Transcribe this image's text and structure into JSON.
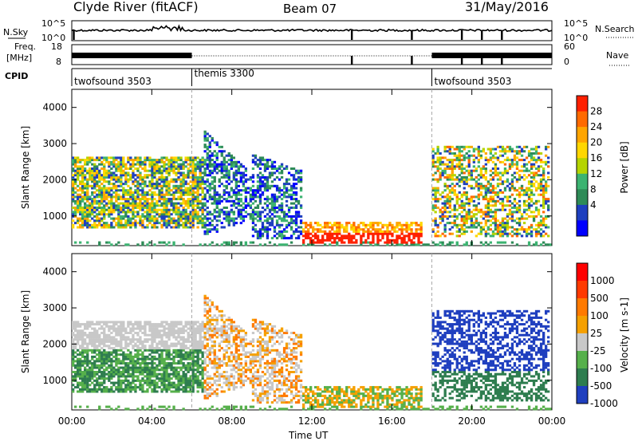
{
  "header": {
    "station": "Clyde River (fitACF)",
    "beam": "Beam 07",
    "date": "31/May/2016"
  },
  "nsky_panel": {
    "left_label": "N.Sky",
    "left_tick_top": "10^5",
    "left_tick_bottom": "10^0",
    "right_label": "N.Search",
    "right_tick_top": "10^5",
    "right_tick_bottom": "10^0"
  },
  "freq_panel": {
    "left_label_top": "Freq.",
    "left_label_bottom": "[MHz]",
    "left_tick_top": "18",
    "left_tick_bottom": "8",
    "right_label": "Nave",
    "right_tick_top": "60",
    "right_tick_bottom": "0"
  },
  "cpid": {
    "label": "CPID",
    "segments": [
      {
        "name": "twofsound 3503",
        "start": 0,
        "end": 6
      },
      {
        "name": "themis 3300",
        "start": 6,
        "end": 18
      },
      {
        "name": "twofsound 3503",
        "start": 18,
        "end": 24
      }
    ]
  },
  "chart_data": [
    {
      "type": "heatmap",
      "title": "",
      "xlabel": "",
      "ylabel": "Slant Range [km]",
      "xlim": [
        0,
        24
      ],
      "ylim": [
        180,
        4500
      ],
      "yticks": [
        "1000",
        "2000",
        "3000",
        "4000"
      ],
      "colorbar_label": "Power [dB]",
      "colorbar_ticks": [
        "4",
        "8",
        "12",
        "16",
        "20",
        "24",
        "28"
      ],
      "colors": [
        "#0000ff",
        "#1e3fbf",
        "#2e8b57",
        "#3cb371",
        "#b5d400",
        "#ffd700",
        "#ffa500",
        "#ff6a00",
        "#ff2000"
      ]
    },
    {
      "type": "heatmap",
      "title": "",
      "xlabel": "Time UT",
      "ylabel": "Slant Range [km]",
      "xlim": [
        0,
        24
      ],
      "ylim": [
        180,
        4500
      ],
      "xticks": [
        "00:00",
        "04:00",
        "08:00",
        "12:00",
        "16:00",
        "20:00",
        "00:00"
      ],
      "yticks": [
        "1000",
        "2000",
        "3000",
        "4000"
      ],
      "colorbar_label": "Velocity  [m s-1]",
      "colorbar_ticks": [
        "1000",
        "500",
        "100",
        "25",
        "-25",
        "-100",
        "-500",
        "-1000"
      ],
      "colors": [
        "#1f3fbf",
        "#2e7d4f",
        "#56b04b",
        "#c8c8c8",
        "#f5a000",
        "#ff7a00",
        "#ff3a00"
      ]
    }
  ]
}
